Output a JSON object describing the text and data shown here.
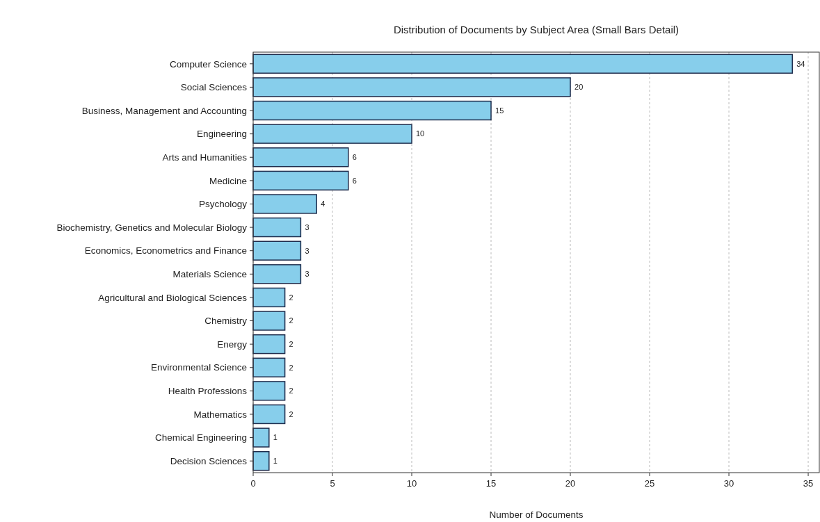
{
  "chart_data": {
    "type": "bar",
    "orientation": "horizontal",
    "title": "Distribution of Documents by Subject Area (Small Bars Detail)",
    "xlabel": "Number of Documents",
    "categories": [
      "Computer Science",
      "Social Sciences",
      "Business, Management and Accounting",
      "Engineering",
      "Arts and Humanities",
      "Medicine",
      "Psychology",
      "Biochemistry, Genetics and Molecular Biology",
      "Economics, Econometrics and Finance",
      "Materials Science",
      "Agricultural and Biological Sciences",
      "Chemistry",
      "Energy",
      "Environmental Science",
      "Health Professions",
      "Mathematics",
      "Chemical Engineering",
      "Decision Sciences"
    ],
    "values": [
      34,
      20,
      15,
      10,
      6,
      6,
      4,
      3,
      3,
      3,
      2,
      2,
      2,
      2,
      2,
      2,
      1,
      1
    ],
    "color": "#87ceeb",
    "data_labels": true,
    "xlim": [
      0,
      35.7
    ],
    "xticks": [
      0,
      5,
      10,
      15,
      20,
      25,
      30,
      35
    ],
    "grid": "x"
  }
}
